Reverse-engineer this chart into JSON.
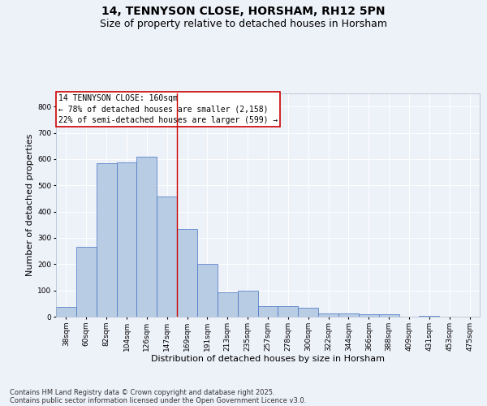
{
  "title_line1": "14, TENNYSON CLOSE, HORSHAM, RH12 5PN",
  "title_line2": "Size of property relative to detached houses in Horsham",
  "xlabel": "Distribution of detached houses by size in Horsham",
  "ylabel": "Number of detached properties",
  "categories": [
    "38sqm",
    "60sqm",
    "82sqm",
    "104sqm",
    "126sqm",
    "147sqm",
    "169sqm",
    "191sqm",
    "213sqm",
    "235sqm",
    "257sqm",
    "278sqm",
    "300sqm",
    "322sqm",
    "344sqm",
    "366sqm",
    "388sqm",
    "409sqm",
    "431sqm",
    "453sqm",
    "475sqm"
  ],
  "values": [
    38,
    267,
    585,
    588,
    610,
    456,
    335,
    200,
    93,
    100,
    40,
    40,
    35,
    13,
    13,
    10,
    10,
    0,
    2,
    1,
    1
  ],
  "bar_color": "#b8cce4",
  "bar_edge_color": "#4472c4",
  "vline_index": 6,
  "annotation_title": "14 TENNYSON CLOSE: 160sqm",
  "annotation_line1": "← 78% of detached houses are smaller (2,158)",
  "annotation_line2": "22% of semi-detached houses are larger (599) →",
  "annotation_box_color": "#ffffff",
  "annotation_box_edge": "#cc0000",
  "vline_color": "#cc0000",
  "ylim": [
    0,
    850
  ],
  "yticks": [
    0,
    100,
    200,
    300,
    400,
    500,
    600,
    700,
    800
  ],
  "footer_line1": "Contains HM Land Registry data © Crown copyright and database right 2025.",
  "footer_line2": "Contains public sector information licensed under the Open Government Licence v3.0.",
  "background_color": "#edf1f8",
  "plot_bg_color": "#edf1f8",
  "title_fontsize": 10,
  "subtitle_fontsize": 9,
  "axis_label_fontsize": 8,
  "tick_fontsize": 6.5,
  "footer_fontsize": 6,
  "ann_fontsize": 7
}
